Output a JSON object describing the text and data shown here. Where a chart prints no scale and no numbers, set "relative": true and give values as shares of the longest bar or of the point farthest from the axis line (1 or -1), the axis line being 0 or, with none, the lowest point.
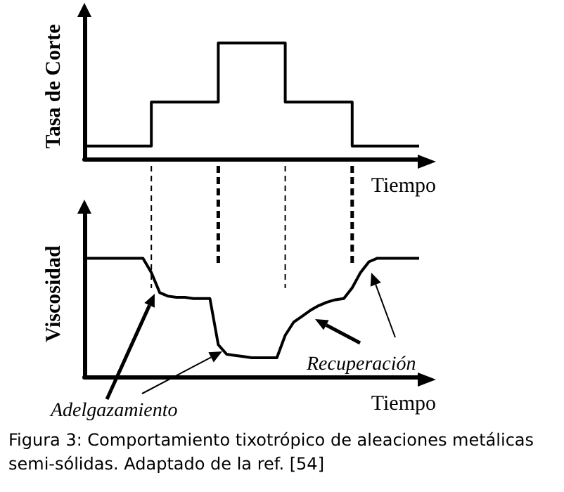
{
  "chart_data": [
    {
      "type": "step",
      "ylabel": "Tasa de Corte",
      "xlabel": "Tiempo",
      "relative": true,
      "marker": "none",
      "line_style": "solid",
      "grid": false,
      "categories": [
        null,
        null,
        null,
        null,
        null,
        null,
        null,
        null,
        null,
        null,
        null,
        null,
        null,
        null,
        null,
        null,
        null,
        null,
        null,
        null,
        null
      ],
      "series": [
        {
          "color": "#000000",
          "values": [
            0.11,
            0.11,
            0.11,
            0.11,
            0.49,
            0.49,
            0.49,
            0.49,
            1,
            1,
            1,
            1,
            0.49,
            0.49,
            0.49,
            0.49,
            0.11,
            0.11,
            0.11,
            0.11,
            0.11
          ]
        }
      ]
    },
    {
      "type": "line",
      "ylabel": "Viscosidad",
      "xlabel": "Tiempo",
      "relative": true,
      "marker": "none",
      "line_style": "solid",
      "grid": false,
      "categories": [
        null,
        null,
        null,
        null,
        null,
        null,
        null,
        null,
        null,
        null,
        null,
        null,
        null,
        null,
        null,
        null,
        null,
        null,
        null,
        null,
        null,
        null,
        null,
        null,
        null,
        null,
        null,
        null,
        null,
        null,
        null,
        null,
        null,
        null,
        null,
        null,
        null,
        null,
        null,
        null,
        null
      ],
      "series": [
        {
          "color": "#000000",
          "values": [
            1,
            1,
            1,
            1,
            1,
            1,
            1,
            1,
            0.88,
            0.71,
            0.68,
            0.67,
            0.67,
            0.66,
            0.66,
            0.66,
            0.27,
            0.19,
            0.18,
            0.17,
            0.16,
            0.16,
            0.16,
            0.16,
            0.35,
            0.46,
            0.51,
            0.56,
            0.6,
            0.63,
            0.65,
            0.66,
            0.75,
            0.88,
            0.97,
            1,
            1,
            1,
            1,
            1,
            1
          ]
        }
      ],
      "annotations": [
        "Adelgazamiento",
        "Recuperación",
        "Figura 3: Comportamiento tixotrópico de aleaciones metálicas semi-sólidas. Adaptado de la ref. [54]"
      ]
    }
  ]
}
